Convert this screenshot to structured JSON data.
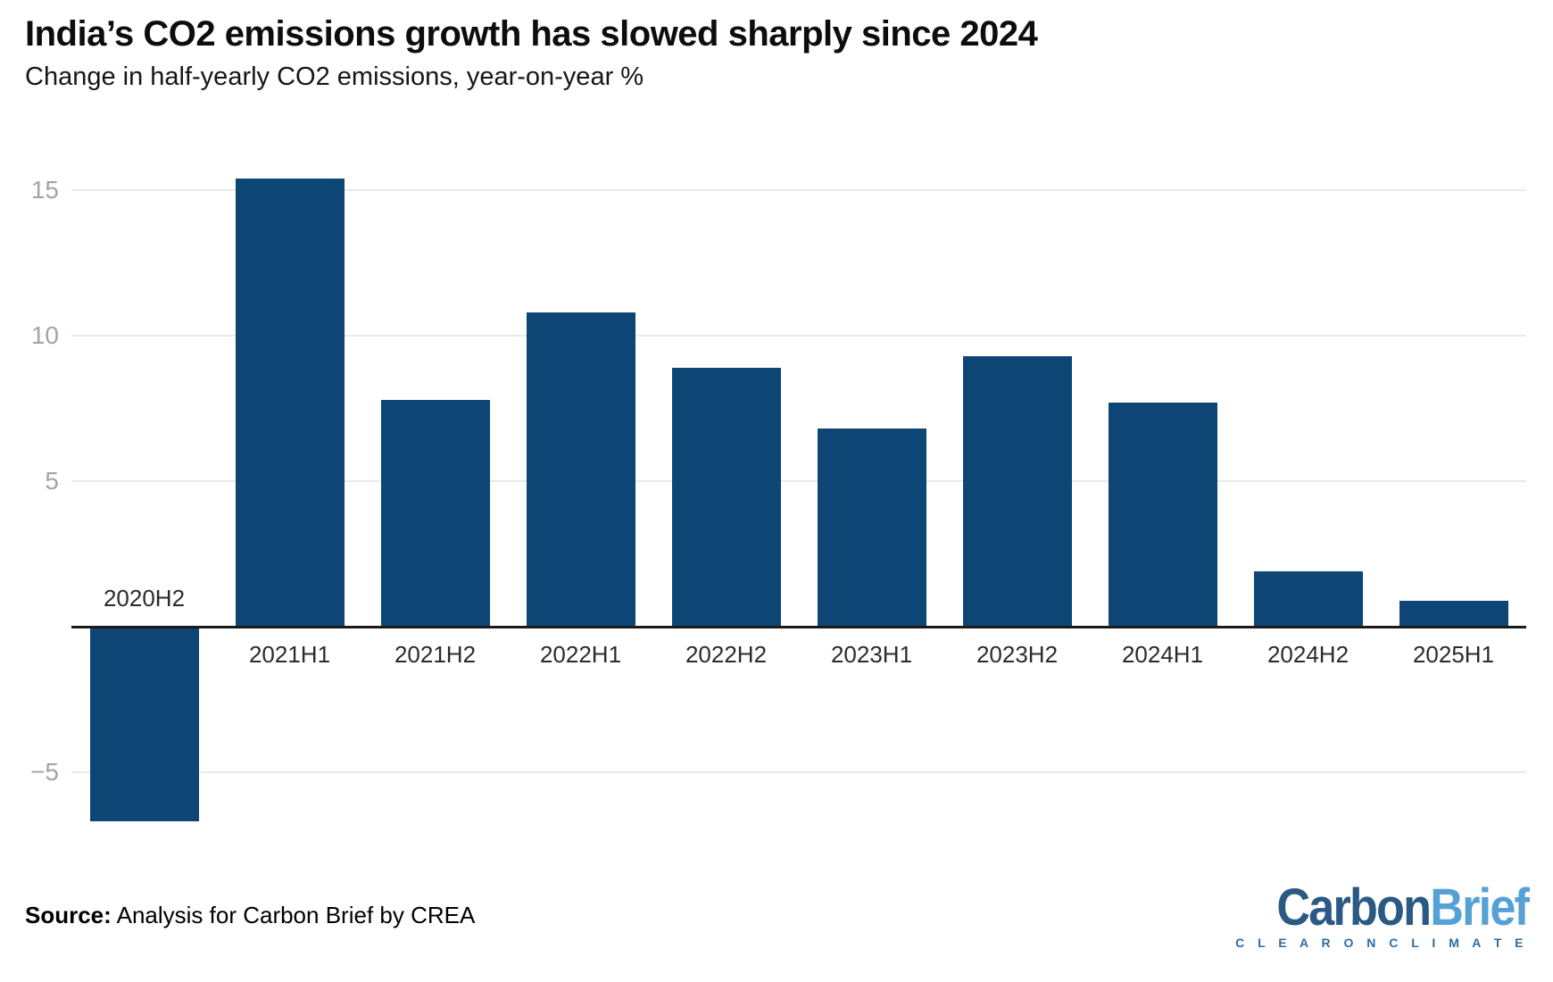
{
  "header": {
    "title": "India’s CO2 emissions growth has slowed sharply since 2024",
    "subtitle": "Change in half-yearly CO2 emissions, year-on-year %"
  },
  "chart_data": {
    "type": "bar",
    "title": "India’s CO2 emissions growth has slowed sharply since 2024",
    "subtitle": "Change in half-yearly CO2 emissions, year-on-year %",
    "categories": [
      "2020H2",
      "2021H1",
      "2021H2",
      "2022H1",
      "2022H2",
      "2023H1",
      "2023H2",
      "2024H1",
      "2024H2",
      "2025H1"
    ],
    "values": [
      -6.7,
      15.4,
      7.8,
      10.8,
      8.9,
      6.8,
      9.3,
      7.7,
      1.9,
      0.9
    ],
    "xlabel": "",
    "ylabel": "",
    "ylim": [
      -8,
      16.5
    ],
    "yticks": [
      {
        "value": 15,
        "label": "15"
      },
      {
        "value": 10,
        "label": "10"
      },
      {
        "value": 5,
        "label": "5"
      },
      {
        "value": -5,
        "label": "−5"
      }
    ],
    "grid": true,
    "legend": "none",
    "bar_color": "#0d4674"
  },
  "footer": {
    "source_label": "Source:",
    "source_text": " Analysis for Carbon Brief by CREA",
    "logo": {
      "part1": "Carbon",
      "part2": "Brief",
      "tagline": "C L E A R   O N   C L I M A T E",
      "color_part1": "#2a5a83",
      "color_part2": "#55a1d6",
      "color_tagline": "#2e6da6"
    }
  }
}
